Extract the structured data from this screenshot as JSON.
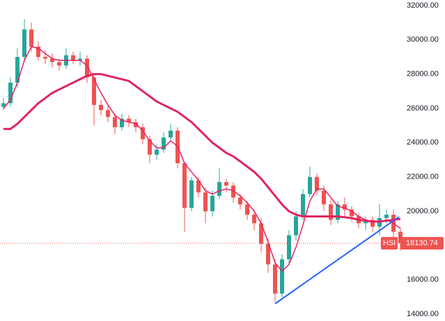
{
  "chart_data": {
    "type": "candlestick",
    "symbol": "HSI",
    "up_color": "#26a69a",
    "down_color": "#ef5350",
    "open": [
      26100,
      26300,
      27500,
      29000,
      30600,
      29600,
      29000,
      28900,
      28700,
      28500,
      29100,
      28800,
      28900,
      27800,
      26200,
      25900,
      25500,
      24900,
      25400,
      25200,
      24900,
      24200,
      23300,
      23600,
      24300,
      24700,
      22800,
      20200,
      21800,
      21100,
      20000,
      20900,
      21700,
      21500,
      20800,
      20400,
      19800,
      19300,
      18100,
      16900,
      15200,
      17200,
      18600,
      19700,
      21000,
      22000,
      21200,
      20400,
      19500,
      20400,
      20100,
      19700,
      19300,
      19500,
      19100,
      19600,
      19800,
      18800
    ],
    "high": [
      26600,
      27800,
      29500,
      31200,
      31000,
      29900,
      29400,
      29200,
      28900,
      29500,
      29300,
      29300,
      29100,
      28000,
      26500,
      26200,
      25700,
      25700,
      25600,
      25400,
      25100,
      24400,
      23900,
      24600,
      25100,
      24900,
      22900,
      22000,
      22000,
      21400,
      21200,
      22500,
      21900,
      21700,
      21000,
      20600,
      20100,
      19600,
      18400,
      17200,
      17500,
      18900,
      20000,
      21300,
      22600,
      22200,
      21500,
      20700,
      20600,
      20800,
      20300,
      19900,
      19700,
      19700,
      20400,
      20100,
      20100,
      19000
    ],
    "low": [
      25900,
      26100,
      27200,
      28700,
      29300,
      28800,
      28600,
      28400,
      28200,
      28300,
      28600,
      28500,
      27500,
      25000,
      25600,
      25200,
      24500,
      24700,
      24900,
      24600,
      23900,
      22800,
      23000,
      23400,
      24100,
      22500,
      18800,
      20000,
      20800,
      19300,
      19700,
      20700,
      21100,
      20500,
      20100,
      19500,
      18900,
      17600,
      16400,
      14700,
      15000,
      16900,
      18300,
      19500,
      20800,
      20900,
      20000,
      19200,
      19300,
      19700,
      19400,
      19000,
      18900,
      18800,
      18600,
      19300,
      18500,
      17700
    ],
    "close": [
      26300,
      27500,
      29000,
      30600,
      29600,
      29000,
      28900,
      28700,
      28500,
      29100,
      28800,
      28900,
      27800,
      26200,
      25900,
      25500,
      24900,
      25400,
      25200,
      24900,
      24200,
      23300,
      23600,
      24300,
      24700,
      22800,
      20200,
      21800,
      21100,
      20000,
      20900,
      21700,
      21500,
      20800,
      20400,
      19800,
      19300,
      18100,
      16900,
      15200,
      17200,
      18600,
      19700,
      21000,
      22000,
      21200,
      20400,
      19500,
      20400,
      20100,
      19700,
      19300,
      19500,
      19100,
      19600,
      19800,
      18800,
      18130.74
    ],
    "series": [
      {
        "color": "#e0245e",
        "width": 3,
        "values": [
          24800,
          24800,
          25100,
          25500,
          25900,
          26300,
          26600,
          26900,
          27100,
          27300,
          27500,
          27700,
          27900,
          28000,
          28000,
          27900,
          27800,
          27700,
          27600,
          27300,
          27000,
          26700,
          26400,
          26200,
          26000,
          25800,
          25500,
          25200,
          24800,
          24400,
          24000,
          23700,
          23400,
          23200,
          22900,
          22600,
          22300,
          21900,
          21400,
          20900,
          20400,
          20000,
          19800,
          19700,
          19700,
          19700,
          19700,
          19700,
          19700,
          19650,
          19600,
          19500,
          19450,
          19400,
          19400,
          19450,
          19500,
          19550
        ]
      },
      {
        "color": "#e91e63",
        "width": 1.5,
        "values": [
          26000,
          26500,
          27500,
          28800,
          29600,
          29500,
          29200,
          28900,
          28800,
          28800,
          28800,
          28800,
          28500,
          27700,
          26900,
          26200,
          25600,
          25300,
          25200,
          25100,
          24700,
          24100,
          23700,
          23700,
          24100,
          23800,
          22800,
          22300,
          21800,
          21200,
          21000,
          21200,
          21300,
          21200,
          20900,
          20500,
          20000,
          19300,
          18200,
          17000,
          16500,
          16900,
          17900,
          19200,
          20600,
          21300,
          21300,
          20800,
          20300,
          20200,
          20000,
          19700,
          19500,
          19400,
          19400,
          19500,
          19300,
          19000
        ]
      }
    ],
    "trendline": {
      "color": "#2962ff",
      "x": [
        39,
        56.8
      ],
      "values": [
        14608,
        19676
      ]
    },
    "ylim": [
      13600,
      32320
    ],
    "yticks": [
      {
        "value": 14000,
        "label": "14000.00"
      },
      {
        "value": 16000,
        "label": "16000.00"
      },
      {
        "value": 18000,
        "label": "18000.00"
      },
      {
        "value": 20000,
        "label": "20000.00"
      },
      {
        "value": 22000,
        "label": "22000.00"
      },
      {
        "value": 24000,
        "label": "24000.00"
      },
      {
        "value": 26000,
        "label": "26000.00"
      },
      {
        "value": 28000,
        "label": "28000.00"
      },
      {
        "value": 30000,
        "label": "30000.00"
      },
      {
        "value": 32000,
        "label": "32000.00"
      }
    ],
    "grid": false
  }
}
